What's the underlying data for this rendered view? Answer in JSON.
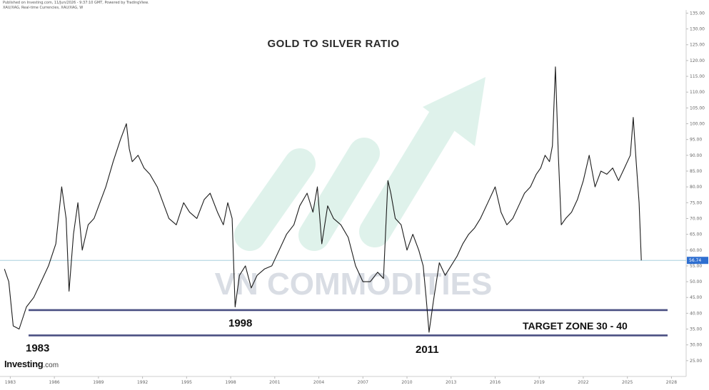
{
  "header": {
    "line1": "Published on Investing.com, 11/Jun/2026 - 9:37:10 GMT, Powered by TradingView.",
    "line2": "XAU/XAG, Real-time Currencies, XAU/XAG, W"
  },
  "brand": {
    "main": "Investing",
    "suffix": ".com"
  },
  "watermark": "VN COMMODITIES",
  "chart_data": {
    "type": "line",
    "title": "GOLD TO SILVER RATIO",
    "xlabel": "",
    "ylabel": "",
    "xlim": [
      1982.3,
      2029.0
    ],
    "ylim": [
      20,
      136
    ],
    "x_ticks": [
      "1983",
      "1986",
      "1989",
      "1992",
      "1995",
      "1998",
      "2001",
      "2004",
      "2007",
      "2010",
      "2013",
      "2016",
      "2019",
      "2022",
      "2025",
      "2028"
    ],
    "y_ticks": [
      "135.00",
      "130.00",
      "125.00",
      "120.00",
      "115.00",
      "110.00",
      "105.00",
      "100.00",
      "95.00",
      "90.00",
      "85.00",
      "80.00",
      "75.00",
      "70.00",
      "65.00",
      "60.00",
      "55.00",
      "50.00",
      "45.00",
      "40.00",
      "35.00",
      "30.00",
      "25.00"
    ],
    "last_value": "56.74",
    "series": [
      {
        "x": [
          1982.6,
          1982.9,
          1983.2,
          1983.6,
          1984.1,
          1984.6,
          1985.1,
          1985.6,
          1986.1,
          1986.5,
          1986.8,
          1987.0,
          1987.3,
          1987.6,
          1987.9,
          1988.3,
          1988.7,
          1989.1,
          1989.5,
          1990.0,
          1990.5,
          1990.9,
          1991.1,
          1991.3,
          1991.7,
          1992.1,
          1992.5,
          1993.0,
          1993.4,
          1993.8,
          1994.3,
          1994.8,
          1995.2,
          1995.7,
          1996.2,
          1996.6,
          1997.1,
          1997.5,
          1997.8,
          1998.1,
          1998.3,
          1998.6,
          1999.0,
          1999.4,
          1999.8,
          2000.3,
          2000.8,
          2001.3,
          2001.8,
          2002.3,
          2002.7,
          2003.2,
          2003.6,
          2003.9,
          2004.2,
          2004.6,
          2005.0,
          2005.5,
          2006.0,
          2006.5,
          2007.0,
          2007.5,
          2008.0,
          2008.4,
          2008.7,
          2008.9,
          2009.2,
          2009.6,
          2010.0,
          2010.4,
          2010.8,
          2011.1,
          2011.3,
          2011.5,
          2011.8,
          2012.2,
          2012.6,
          2013.0,
          2013.4,
          2013.8,
          2014.2,
          2014.6,
          2015.0,
          2015.5,
          2016.0,
          2016.4,
          2016.8,
          2017.2,
          2017.6,
          2018.0,
          2018.4,
          2018.8,
          2019.1,
          2019.4,
          2019.7,
          2019.9,
          2020.1,
          2020.3,
          2020.5,
          2020.8,
          2021.2,
          2021.6,
          2022.0,
          2022.4,
          2022.8,
          2023.2,
          2023.6,
          2024.0,
          2024.4,
          2024.8,
          2025.0,
          2025.2,
          2025.4,
          2025.6,
          2025.8,
          2025.95
        ],
        "y": [
          54,
          50,
          36,
          35,
          42,
          45,
          50,
          55,
          62,
          80,
          70,
          47,
          65,
          75,
          60,
          68,
          70,
          75,
          80,
          88,
          95,
          100,
          92,
          88,
          90,
          86,
          84,
          80,
          75,
          70,
          68,
          75,
          72,
          70,
          76,
          78,
          72,
          68,
          75,
          70,
          42,
          52,
          55,
          48,
          52,
          54,
          55,
          60,
          65,
          68,
          74,
          78,
          72,
          80,
          62,
          74,
          70,
          68,
          64,
          55,
          50,
          50,
          53,
          51,
          82,
          78,
          70,
          68,
          60,
          65,
          60,
          55,
          45,
          34,
          44,
          56,
          52,
          55,
          58,
          62,
          65,
          67,
          70,
          75,
          80,
          72,
          68,
          70,
          74,
          78,
          80,
          84,
          86,
          90,
          88,
          93,
          118,
          90,
          68,
          70,
          72,
          76,
          82,
          90,
          80,
          85,
          84,
          86,
          82,
          86,
          88,
          90,
          102,
          88,
          75,
          56.74
        ]
      }
    ],
    "hlines": [
      56.74,
      41,
      33
    ],
    "annotations": [
      "1983",
      "1998",
      "2011",
      "TARGET ZONE 30 - 40"
    ]
  }
}
